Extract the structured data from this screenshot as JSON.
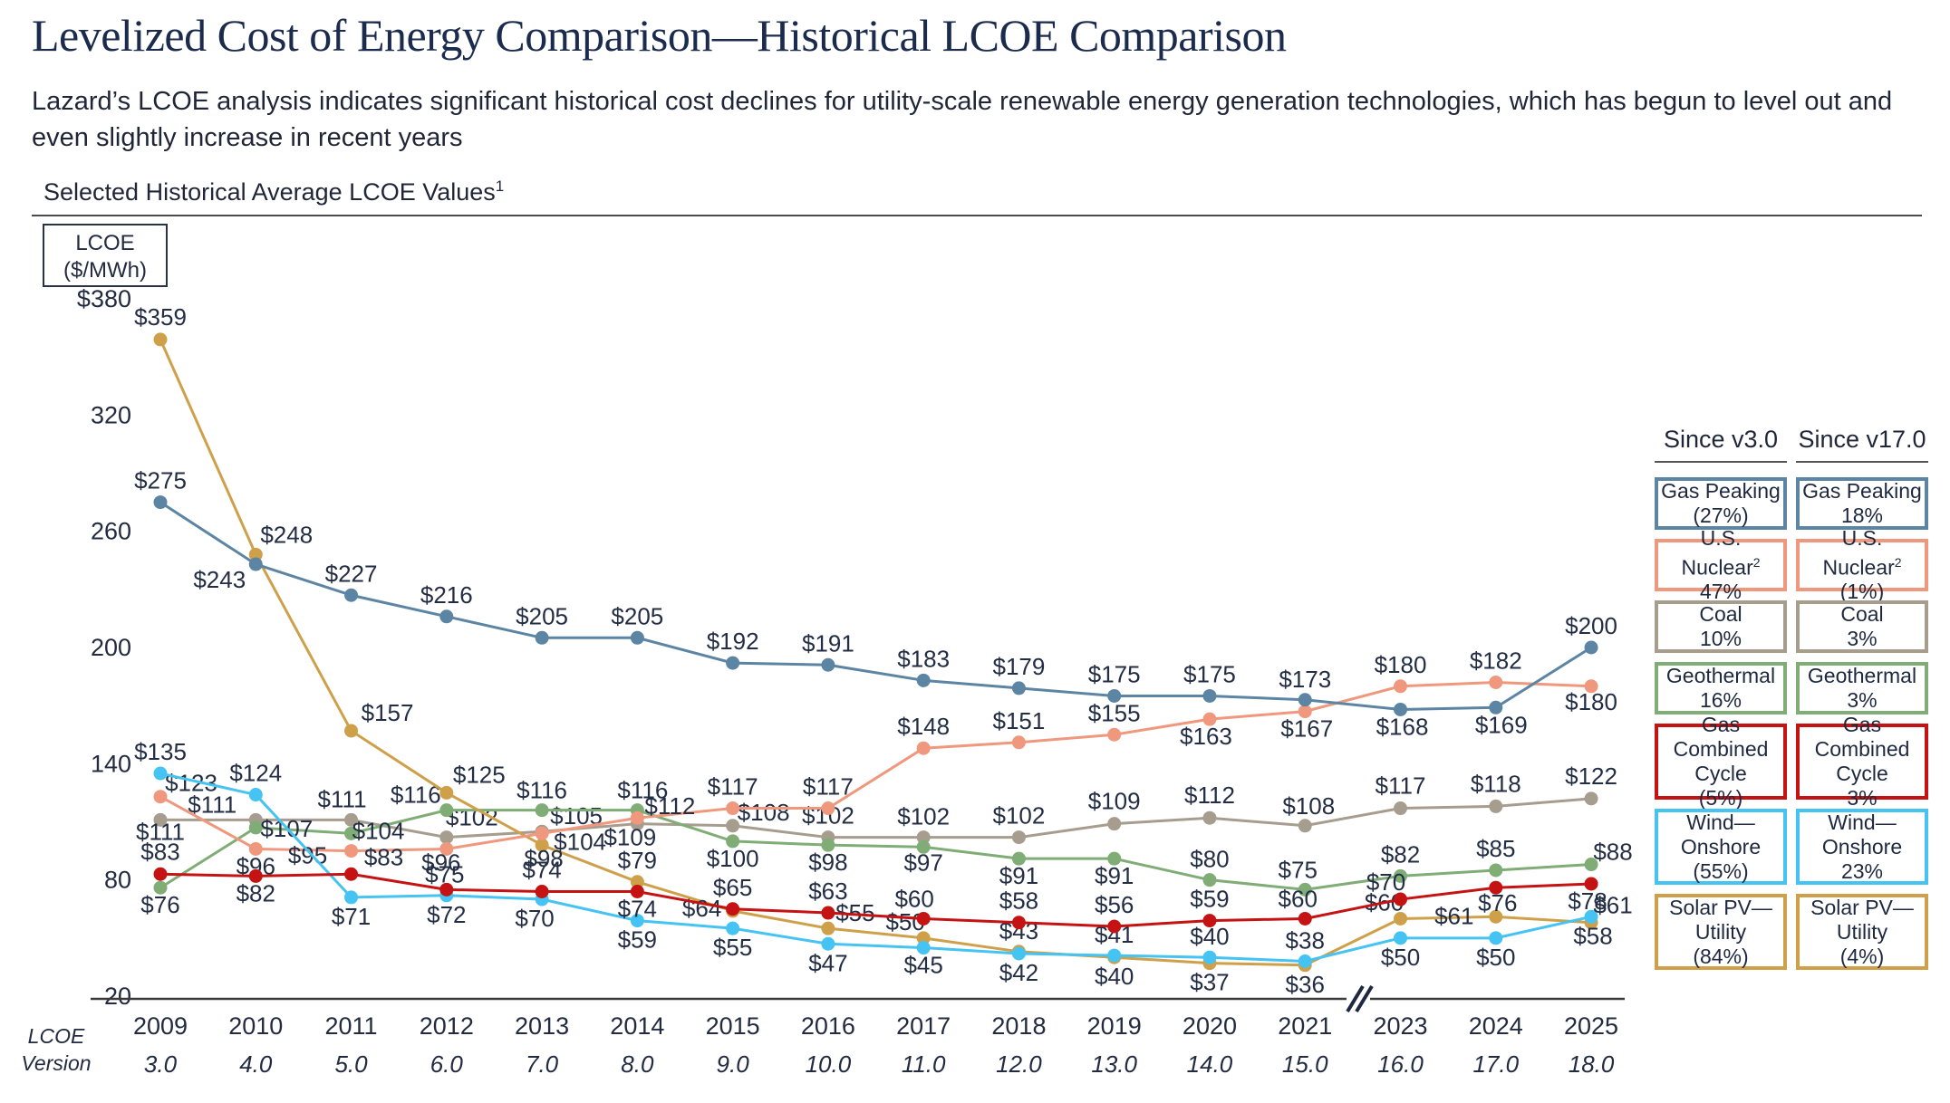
{
  "header": {
    "title": "Levelized Cost of Energy Comparison—Historical LCOE Comparison",
    "subtitle": "Lazard’s LCOE analysis indicates significant historical cost declines for utility-scale renewable energy generation technologies, which has begun to level out and even slightly increase in recent years",
    "section_label": "Selected Historical Average LCOE Values",
    "section_label_note": "1"
  },
  "chart_data": {
    "type": "line",
    "title": "Selected Historical Average LCOE Values",
    "unit": "$/MWh",
    "y_axis": {
      "label_box_lines": [
        "LCOE",
        "($/MWh)"
      ],
      "ticks": [
        380,
        320,
        260,
        200,
        140,
        80,
        20
      ],
      "tick_labels": [
        "$380",
        "320",
        "260",
        "200",
        "140",
        "80",
        "20"
      ],
      "min": 20,
      "max": 380,
      "grid": false
    },
    "x_axis": {
      "years": [
        "2009",
        "2010",
        "2011",
        "2012",
        "2013",
        "2014",
        "2015",
        "2016",
        "2017",
        "2018",
        "2019",
        "2020",
        "2021",
        "2023",
        "2024",
        "2025"
      ],
      "lcoe_versions": [
        "3.0",
        "4.0",
        "5.0",
        "6.0",
        "7.0",
        "8.0",
        "9.0",
        "10.0",
        "11.0",
        "12.0",
        "13.0",
        "14.0",
        "15.0",
        "16.0",
        "17.0",
        "18.0"
      ],
      "version_row_label_lines": [
        "LCOE",
        "Version"
      ],
      "break_between": [
        "2021",
        "2023"
      ]
    },
    "series": [
      {
        "id": "gas_peaking",
        "name": "Gas Peaking",
        "color": "#5C85A4",
        "values": [
          275,
          243,
          227,
          216,
          205,
          205,
          192,
          191,
          183,
          179,
          175,
          175,
          173,
          168,
          169,
          200
        ]
      },
      {
        "id": "nuclear",
        "name": "U.S. Nuclear",
        "color": "#F0987D",
        "values": [
          123,
          96,
          95,
          96,
          104,
          112,
          117,
          117,
          148,
          151,
          155,
          163,
          167,
          180,
          182,
          180
        ]
      },
      {
        "id": "coal",
        "name": "Coal",
        "color": "#A79D8F",
        "values": [
          111,
          111,
          111,
          102,
          105,
          109,
          108,
          102,
          102,
          102,
          109,
          112,
          108,
          117,
          118,
          122
        ]
      },
      {
        "id": "geothermal",
        "name": "Geothermal",
        "color": "#7FAD75",
        "values": [
          76,
          107,
          104,
          116,
          116,
          116,
          100,
          98,
          97,
          91,
          91,
          80,
          75,
          82,
          85,
          88
        ]
      },
      {
        "id": "gas_cc",
        "name": "Gas Combined Cycle",
        "color": "#C51212",
        "values": [
          83,
          82,
          83,
          75,
          74,
          74,
          65,
          63,
          60,
          58,
          56,
          59,
          60,
          70,
          76,
          78
        ]
      },
      {
        "id": "wind",
        "name": "Wind—Onshore",
        "color": "#45C3F3",
        "values": [
          135,
          124,
          71,
          72,
          70,
          59,
          55,
          47,
          45,
          42,
          41,
          40,
          38,
          50,
          50,
          61
        ]
      },
      {
        "id": "solar",
        "name": "Solar PV—Utility",
        "color": "#CFA04A",
        "values": [
          359,
          248,
          157,
          125,
          98,
          79,
          64,
          55,
          50,
          43,
          40,
          37,
          36,
          60,
          61,
          58
        ]
      }
    ],
    "legend": {
      "column_headers": [
        "Since v3.0",
        "Since v17.0"
      ],
      "rows": [
        {
          "series": "gas_peaking",
          "color": "#5C85A4",
          "col1_lines": [
            "Gas Peaking",
            "(27%)"
          ],
          "col2_lines": [
            "Gas Peaking",
            "18%"
          ]
        },
        {
          "series": "nuclear",
          "color": "#F0987D",
          "col1_lines": [
            "U.S. Nuclear²",
            "47%"
          ],
          "col2_lines": [
            "U.S. Nuclear²",
            "(1%)"
          ]
        },
        {
          "series": "coal",
          "color": "#A79D8F",
          "col1_lines": [
            "Coal",
            "10%"
          ],
          "col2_lines": [
            "Coal",
            "3%"
          ]
        },
        {
          "series": "geothermal",
          "color": "#7FAD75",
          "col1_lines": [
            "Geothermal",
            "16%"
          ],
          "col2_lines": [
            "Geothermal",
            "3%"
          ]
        },
        {
          "series": "gas_cc",
          "color": "#C51212",
          "col1_lines": [
            "Gas Combined",
            "Cycle",
            "(5%)"
          ],
          "col2_lines": [
            "Gas Combined",
            "Cycle",
            "3%"
          ]
        },
        {
          "series": "wind",
          "color": "#45C3F3",
          "col1_lines": [
            "Wind—",
            "Onshore",
            "(55%)"
          ],
          "col2_lines": [
            "Wind—",
            "Onshore",
            "23%"
          ]
        },
        {
          "series": "solar",
          "color": "#CFA04A",
          "col1_lines": [
            "Solar PV—",
            "Utility",
            "(84%)"
          ],
          "col2_lines": [
            "Solar PV—",
            "Utility",
            "(4%)"
          ]
        }
      ]
    }
  }
}
